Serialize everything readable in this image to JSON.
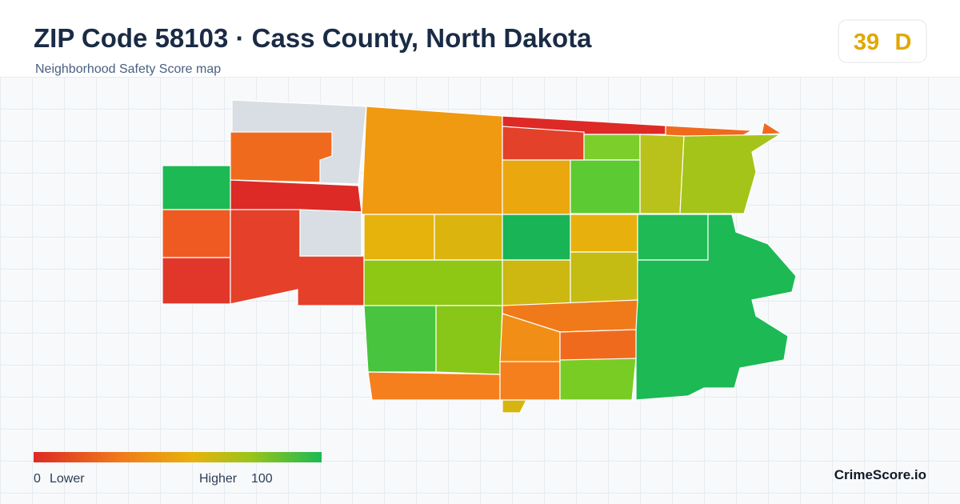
{
  "header": {
    "title": "ZIP Code 58103 · Cass County, North Dakota",
    "subtitle": "Neighborhood Safety Score map"
  },
  "score": {
    "value": 39,
    "grade": "D"
  },
  "legend": {
    "min": 0,
    "min_label": "Lower",
    "max_label": "Higher",
    "max": 100
  },
  "brand": "CrimeScore.io"
}
